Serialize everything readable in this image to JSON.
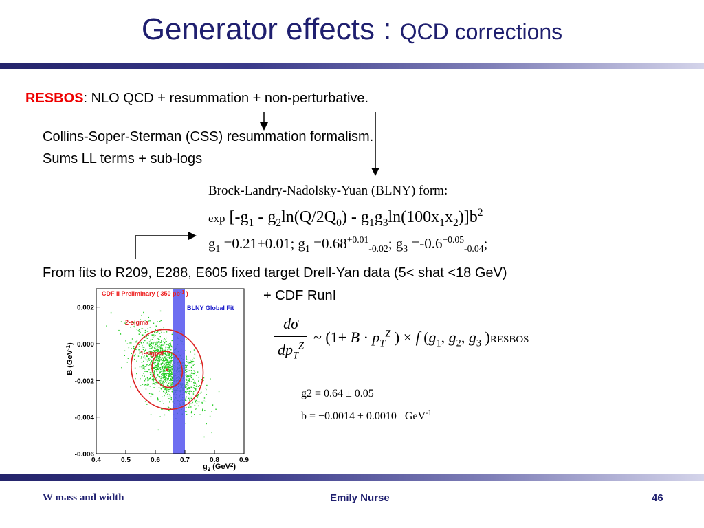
{
  "title": {
    "main": "Generator effects : ",
    "sub": "QCD corrections"
  },
  "resbos": {
    "keyword": "RESBOS",
    "text": ": NLO QCD + resummation + non-perturbative."
  },
  "css": {
    "line1": "Collins-Soper-Sterman (CSS) resummation formalism.",
    "line2": "Sums LL terms + sub-logs"
  },
  "blny": {
    "title": "Brock-Landry-Nadolsky-Yuan (BLNY) form:"
  },
  "fits": {
    "line1": "From fits to R209, E288, E605 fixed target Drell-Yan data (5< shat <18 GeV)",
    "line2": "+ CDF RunI"
  },
  "formula": {
    "subscript": "RESBOS"
  },
  "fit_results": {
    "g2": "g2 = 0.64 ± 0.05",
    "b": "b = −0.0014 ± 0.0010",
    "unit": "GeV",
    "unit_exp": "-1"
  },
  "plot": {
    "header": "CDF II Preliminary ( 350 pb",
    "header_exp": "-1",
    "header_end": " )",
    "band_label": "BLNY Global Fit",
    "label_2sigma": "2-sigma",
    "label_1sigma": "1-sigma",
    "ylabel": "B (GeV",
    "ylabel_exp": "-1",
    "ylabel_end": ")",
    "xlabel": "g",
    "xlabel_sub": "2",
    "xlabel_unit": " (GeV",
    "xlabel_exp": "2",
    "xlabel_end": ")",
    "colors": {
      "frame_header": "#ee2222",
      "band": "#5555ee",
      "points": "#22cc22",
      "ellipse": "#dd2222"
    }
  },
  "chart_data": {
    "type": "scatter",
    "title": "CDF II Preliminary ( 350 pb-1 )",
    "xlabel": "g2 (GeV2)",
    "ylabel": "B (GeV-1)",
    "xlim": [
      0.4,
      0.9
    ],
    "ylim": [
      -0.006,
      0.003
    ],
    "x_ticks": [
      "0.4",
      "0.5",
      "0.6",
      "0.7",
      "0.8",
      "0.9"
    ],
    "y_ticks": [
      "0.002",
      "0.000",
      "-0.002",
      "-0.004",
      "-0.006"
    ],
    "band": {
      "name": "BLNY Global Fit",
      "x_range": [
        0.66,
        0.7
      ]
    },
    "best_fit": {
      "x": 0.64,
      "y": -0.0014
    },
    "contours": [
      {
        "name": "1-sigma",
        "center": [
          0.64,
          -0.0014
        ],
        "rx": 0.05,
        "ry": 0.001
      },
      {
        "name": "2-sigma",
        "center": [
          0.64,
          -0.0014
        ],
        "rx": 0.12,
        "ry": 0.0022
      }
    ]
  },
  "footer": {
    "left": "W mass and width",
    "center": "Emily Nurse",
    "right": "46"
  }
}
